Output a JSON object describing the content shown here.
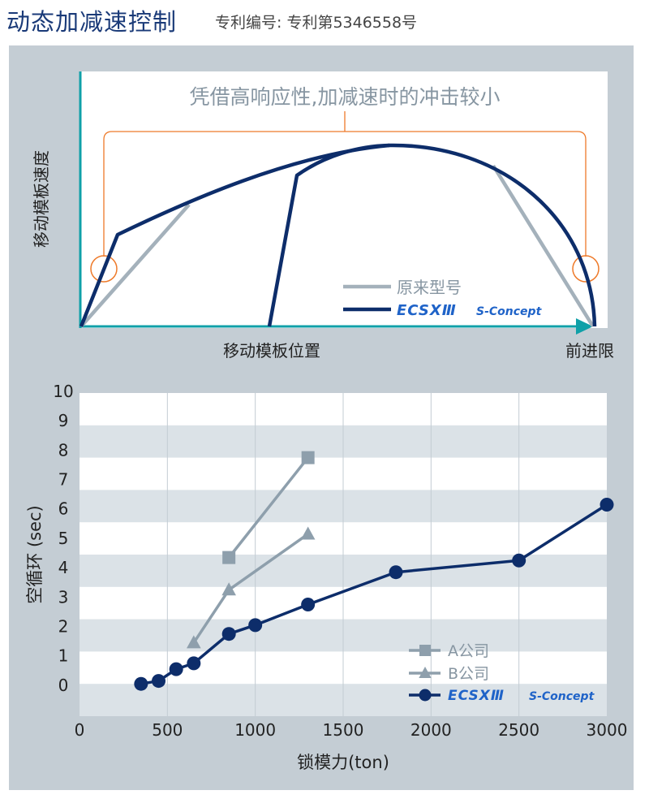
{
  "header": {
    "title": "动态加减速控制",
    "subtitle": "专利编号: 专利第5346558号"
  },
  "colors": {
    "panel_bg": "#c4cdd4",
    "navy": "#0d2d6a",
    "gray": "#a4b1bb",
    "teal": "#10a0a8",
    "orange": "#ee7a2a",
    "brand_blue": "#1f63c8"
  },
  "chart_data": [
    {
      "type": "line",
      "title": "",
      "annotation": "凭借高响应性,加减速时的冲击较小",
      "ylabel": "移动模板速度",
      "xlabel": "移动模板位置",
      "x_end_label": "前进限",
      "legend": [
        {
          "name": "原来型号"
        },
        {
          "name": "ECSX III S-Concept",
          "logo_text": "ECSXⅢ",
          "suffix_text": "S-Concept"
        }
      ],
      "legend_position": "bottom-right",
      "series": [
        {
          "name": "原来型号"
        },
        {
          "name": "ECSX III S-Concept"
        }
      ],
      "notes": "schematic velocity profile, no numeric axes"
    },
    {
      "type": "line",
      "title": "",
      "xlabel": "锁模力(ton)",
      "ylabel": "空循环 (sec)",
      "xlim": [
        0,
        3000
      ],
      "ylim": [
        -1,
        10
      ],
      "x_ticks": [
        0,
        500,
        1000,
        1500,
        2000,
        2500,
        3000
      ],
      "y_ticks": [
        0,
        1,
        2,
        3,
        4,
        5,
        6,
        7,
        8,
        9,
        10
      ],
      "grid": true,
      "legend_position": "bottom-right",
      "series": [
        {
          "name": "A公司",
          "marker": "square",
          "color": "#8e9fac",
          "x": [
            850,
            1300
          ],
          "y": [
            4.4,
            7.8
          ]
        },
        {
          "name": "B公司",
          "marker": "triangle",
          "color": "#8e9fac",
          "x": [
            650,
            850,
            1300
          ],
          "y": [
            1.5,
            3.3,
            5.2
          ]
        },
        {
          "name": "ECSX III S-Concept",
          "logo_text": "ECSXⅢ",
          "suffix_text": "S-Concept",
          "marker": "circle",
          "color": "#0d2d6a",
          "x": [
            350,
            450,
            550,
            650,
            850,
            1000,
            1300,
            1800,
            2500,
            3000
          ],
          "y": [
            0.1,
            0.2,
            0.6,
            0.8,
            1.8,
            2.1,
            2.8,
            3.9,
            4.3,
            6.2
          ]
        }
      ]
    }
  ]
}
